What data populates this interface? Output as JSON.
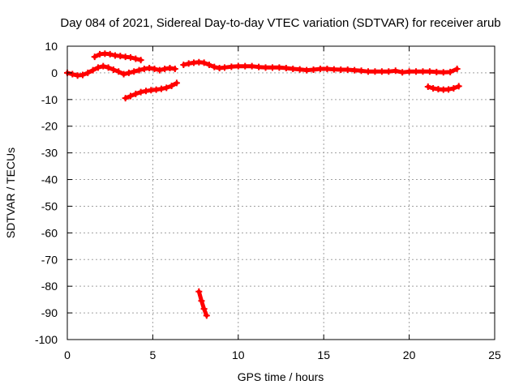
{
  "chart_data": {
    "type": "scatter",
    "title": "Day 084 of 2021, Sidereal Day-to-day VTEC variation (SDTVAR) for receiver arub",
    "xlabel": "GPS time / hours",
    "ylabel": "SDTVAR / TECUs",
    "xlim": [
      0,
      25
    ],
    "ylim": [
      -100,
      10
    ],
    "xticks": [
      0,
      5,
      10,
      15,
      20,
      25
    ],
    "yticks": [
      10,
      0,
      -10,
      -20,
      -30,
      -40,
      -50,
      -60,
      -70,
      -80,
      -90,
      -100
    ],
    "grid": true,
    "marker_color": "#ff0000",
    "series": [
      {
        "name": "arc1",
        "x": [
          0,
          0.3,
          0.6,
          0.9,
          1.2,
          1.5,
          1.8,
          2.1,
          2.4,
          2.7,
          3.0,
          3.3,
          3.6,
          3.9,
          4.2,
          4.5,
          4.8,
          5.1,
          5.4,
          5.7,
          6.0,
          6.3
        ],
        "y": [
          0,
          -0.5,
          -1,
          -0.8,
          0,
          1,
          2,
          2.5,
          2,
          1.2,
          0.5,
          -0.5,
          0,
          0.5,
          1,
          1.5,
          1.8,
          1.5,
          1,
          1.5,
          1.8,
          1.5
        ]
      },
      {
        "name": "arc2",
        "x": [
          1.6,
          1.9,
          2.2,
          2.5,
          2.8,
          3.1,
          3.4,
          3.7,
          4.0,
          4.3
        ],
        "y": [
          6,
          7,
          7.2,
          7,
          6.5,
          6.3,
          6,
          5.8,
          5.3,
          4.8
        ]
      },
      {
        "name": "arc3",
        "x": [
          3.4,
          3.7,
          4.0,
          4.3,
          4.6,
          4.9,
          5.2,
          5.5,
          5.8,
          6.1,
          6.4
        ],
        "y": [
          -9.5,
          -8.7,
          -7.9,
          -7.2,
          -6.8,
          -6.5,
          -6.3,
          -6.0,
          -5.6,
          -4.9,
          -3.8
        ]
      },
      {
        "name": "arc4",
        "x": [
          6.8,
          7.1,
          7.4,
          7.7,
          8.0,
          8.3,
          8.6,
          8.9,
          9.2,
          9.6,
          10.0,
          10.4,
          10.8,
          11.2,
          11.6,
          12.0,
          12.4,
          12.8,
          13.2,
          13.6,
          14.0,
          14.4,
          14.8,
          15.2,
          15.6,
          16.0,
          16.4,
          16.8,
          17.2,
          17.6,
          18.0,
          18.4,
          18.8,
          19.2,
          19.6,
          20.0,
          20.4,
          20.8,
          21.2,
          21.6,
          22.0,
          22.4,
          22.8
        ],
        "y": [
          3,
          3.5,
          3.8,
          4,
          3.8,
          3,
          2.2,
          1.8,
          2,
          2.3,
          2.5,
          2.5,
          2.5,
          2.2,
          2,
          2,
          2,
          1.8,
          1.5,
          1.3,
          1,
          1.2,
          1.5,
          1.5,
          1.3,
          1.2,
          1.2,
          1,
          0.8,
          0.5,
          0.5,
          0.5,
          0.5,
          0.8,
          0.2,
          0.5,
          0.5,
          0.5,
          0.5,
          0.3,
          0.2,
          0.3,
          1.5
        ]
      },
      {
        "name": "arc5",
        "x": [
          21.1,
          21.4,
          21.7,
          22.0,
          22.3,
          22.6,
          22.9
        ],
        "y": [
          -5.2,
          -5.8,
          -6.1,
          -6.3,
          -6.2,
          -5.8,
          -5.0
        ]
      },
      {
        "name": "arc6",
        "x": [
          7.7,
          7.85,
          8.0,
          8.15
        ],
        "y": [
          -82,
          -85.5,
          -88.5,
          -91
        ]
      }
    ]
  }
}
